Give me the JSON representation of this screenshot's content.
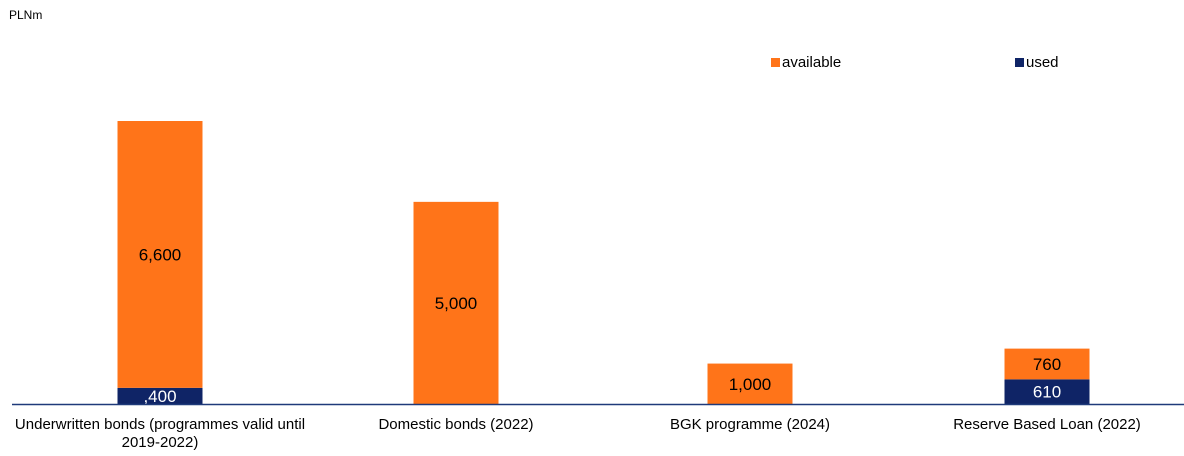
{
  "chart_data": {
    "type": "bar",
    "stacked": true,
    "ylabel": "PLNm",
    "categories": [
      "Underwritten bonds (programmes valid until 2019-2022)",
      "Domestic bonds (2022)",
      "BGK programme (2024)",
      "Reserve Based Loan (2022)"
    ],
    "series": [
      {
        "name": "used",
        "values": [
          400,
          0,
          0,
          610
        ],
        "labels": [
          ",400",
          "",
          "",
          "610"
        ]
      },
      {
        "name": "available",
        "values": [
          6600,
          5000,
          1000,
          760
        ],
        "labels": [
          "6,600",
          "5,000",
          "1,000",
          "760"
        ]
      }
    ],
    "legend": [
      "available",
      "used"
    ],
    "legend_position": "top-right",
    "grid": false
  },
  "colors": {
    "available": "#ff7419",
    "used": "#0f2466",
    "axis": "#1f3a7a"
  }
}
